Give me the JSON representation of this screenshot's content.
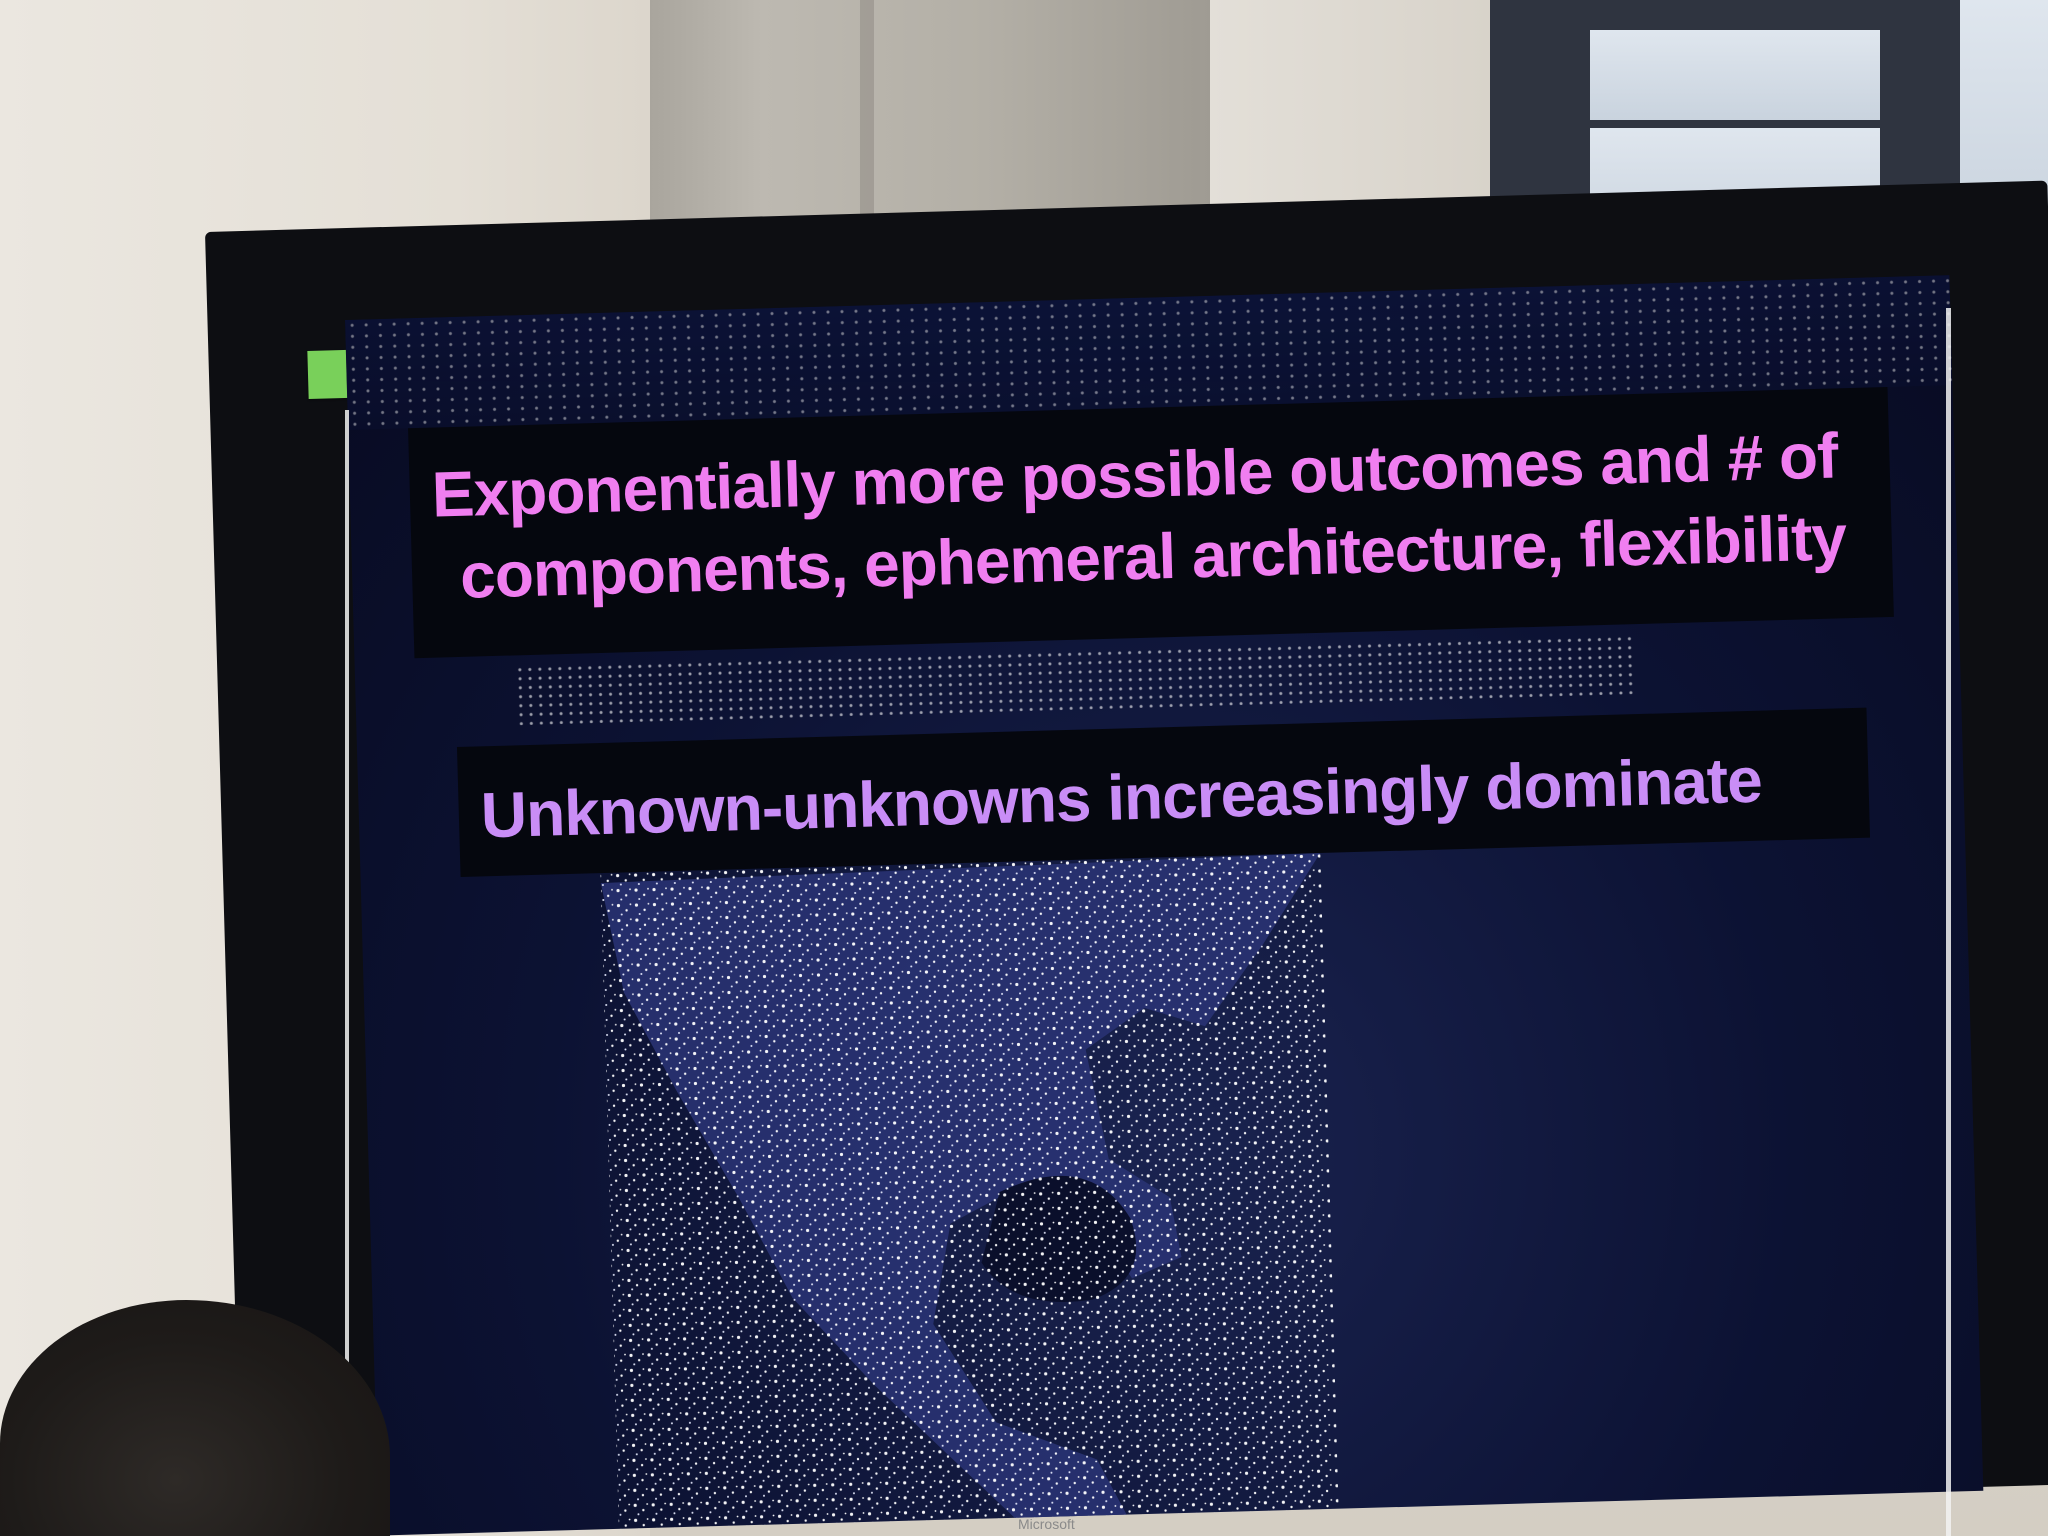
{
  "slide": {
    "line1": "Exponentially more possible outcomes and # of",
    "line2": "components, ephemeral architecture, flexibility",
    "line3": "Unknown-unknowns increasingly dominate"
  },
  "monitor": {
    "brand": "Microsoft"
  },
  "colors": {
    "heading_text": "#f07ef0",
    "subheading_text": "#c98df6",
    "screen_background": "#0c1233",
    "city_lights": "#ffffff"
  }
}
